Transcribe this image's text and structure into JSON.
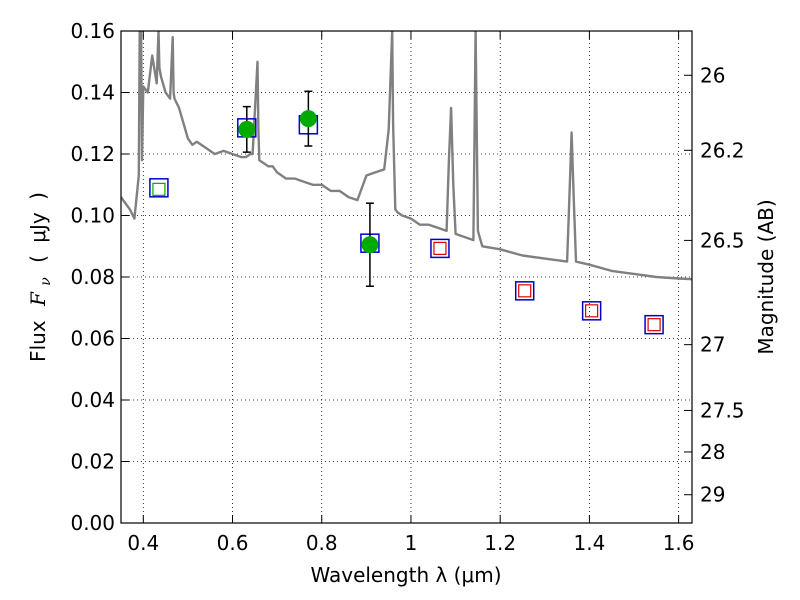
{
  "chart_data": {
    "type": "scatter",
    "xlabel": "Wavelength  λ (μm)",
    "ylabel_parts": {
      "flux": "Flux",
      "symbol": "F",
      "sub": "ν",
      "open": "(",
      "unit": "μJy",
      "close": ")"
    },
    "y2label": "Magnitude (AB)",
    "xlim": [
      0.35,
      1.63
    ],
    "ylim": [
      0.0,
      0.16
    ],
    "x_ticks": [
      0.4,
      0.6,
      0.8,
      1.0,
      1.2,
      1.4,
      1.6
    ],
    "x_tick_labels": [
      "0.4",
      "0.6",
      "0.8",
      "1",
      "1.2",
      "1.4",
      "1.6"
    ],
    "y_ticks": [
      0.0,
      0.02,
      0.04,
      0.06,
      0.08,
      0.1,
      0.12,
      0.14,
      0.16
    ],
    "y_tick_labels": [
      "0.00",
      "0.02",
      "0.04",
      "0.06",
      "0.08",
      "0.10",
      "0.12",
      "0.14",
      "0.16"
    ],
    "y2_ticks": [
      {
        "label": "26",
        "flux": 0.1456
      },
      {
        "label": "26.2",
        "flux": 0.1212
      },
      {
        "label": "26.5",
        "flux": 0.0919
      },
      {
        "label": "27",
        "flux": 0.058
      },
      {
        "label": "27.5",
        "flux": 0.0366
      },
      {
        "label": "28",
        "flux": 0.0231
      },
      {
        "label": "29",
        "flux": 0.0092
      }
    ],
    "grid": true,
    "colors": {
      "model": "#808080",
      "observed": "#00aa00",
      "model_box": "#0000cc",
      "band_green": "#00aa00",
      "band_red": "#dd0000",
      "error": "#000000"
    },
    "model_spectrum": {
      "x": [
        0.35,
        0.37,
        0.38,
        0.39,
        0.392,
        0.395,
        0.397,
        0.4,
        0.41,
        0.42,
        0.43,
        0.434,
        0.436,
        0.44,
        0.45,
        0.46,
        0.466,
        0.468,
        0.47,
        0.48,
        0.49,
        0.5,
        0.51,
        0.52,
        0.54,
        0.56,
        0.58,
        0.6,
        0.62,
        0.63,
        0.64,
        0.645,
        0.656,
        0.658,
        0.66,
        0.67,
        0.68,
        0.69,
        0.7,
        0.72,
        0.74,
        0.76,
        0.78,
        0.8,
        0.82,
        0.84,
        0.86,
        0.88,
        0.9,
        0.92,
        0.94,
        0.95,
        0.958,
        0.96,
        0.965,
        0.97,
        0.98,
        1.0,
        1.02,
        1.04,
        1.06,
        1.08,
        1.085,
        1.09,
        1.095,
        1.1,
        1.12,
        1.14,
        1.145,
        1.15,
        1.16,
        1.2,
        1.25,
        1.3,
        1.35,
        1.355,
        1.36,
        1.365,
        1.37,
        1.4,
        1.45,
        1.5,
        1.55,
        1.6,
        1.63
      ],
      "y": [
        0.106,
        0.102,
        0.099,
        0.113,
        0.16,
        0.16,
        0.118,
        0.142,
        0.14,
        0.152,
        0.143,
        0.16,
        0.148,
        0.145,
        0.14,
        0.138,
        0.158,
        0.14,
        0.138,
        0.135,
        0.13,
        0.125,
        0.123,
        0.124,
        0.122,
        0.12,
        0.121,
        0.12,
        0.119,
        0.119,
        0.12,
        0.12,
        0.15,
        0.128,
        0.118,
        0.117,
        0.116,
        0.116,
        0.114,
        0.112,
        0.112,
        0.111,
        0.11,
        0.11,
        0.108,
        0.108,
        0.106,
        0.105,
        0.113,
        0.114,
        0.115,
        0.128,
        0.16,
        0.13,
        0.102,
        0.101,
        0.1,
        0.099,
        0.097,
        0.097,
        0.096,
        0.095,
        0.118,
        0.135,
        0.11,
        0.094,
        0.093,
        0.092,
        0.16,
        0.095,
        0.09,
        0.089,
        0.087,
        0.086,
        0.085,
        0.105,
        0.127,
        0.105,
        0.085,
        0.084,
        0.082,
        0.081,
        0.08,
        0.0795,
        0.0793
      ]
    },
    "observed_points": [
      {
        "x": 0.632,
        "y": 0.128,
        "err": 0.0074
      },
      {
        "x": 0.77,
        "y": 0.1315,
        "err": 0.0089
      },
      {
        "x": 0.908,
        "y": 0.0905,
        "err": 0.0135
      }
    ],
    "model_boxes": [
      {
        "x": 0.435,
        "y": 0.109
      },
      {
        "x": 0.632,
        "y": 0.1285
      },
      {
        "x": 0.77,
        "y": 0.1295
      },
      {
        "x": 0.908,
        "y": 0.091
      },
      {
        "x": 1.065,
        "y": 0.0893
      },
      {
        "x": 1.255,
        "y": 0.0755
      },
      {
        "x": 1.405,
        "y": 0.069
      },
      {
        "x": 1.545,
        "y": 0.0645
      }
    ],
    "band_boxes": [
      {
        "x": 0.435,
        "y": 0.1085,
        "color": "green"
      },
      {
        "x": 1.065,
        "y": 0.0893,
        "color": "red"
      },
      {
        "x": 1.255,
        "y": 0.0755,
        "color": "red"
      },
      {
        "x": 1.405,
        "y": 0.069,
        "color": "red"
      },
      {
        "x": 1.545,
        "y": 0.0645,
        "color": "red"
      }
    ]
  }
}
